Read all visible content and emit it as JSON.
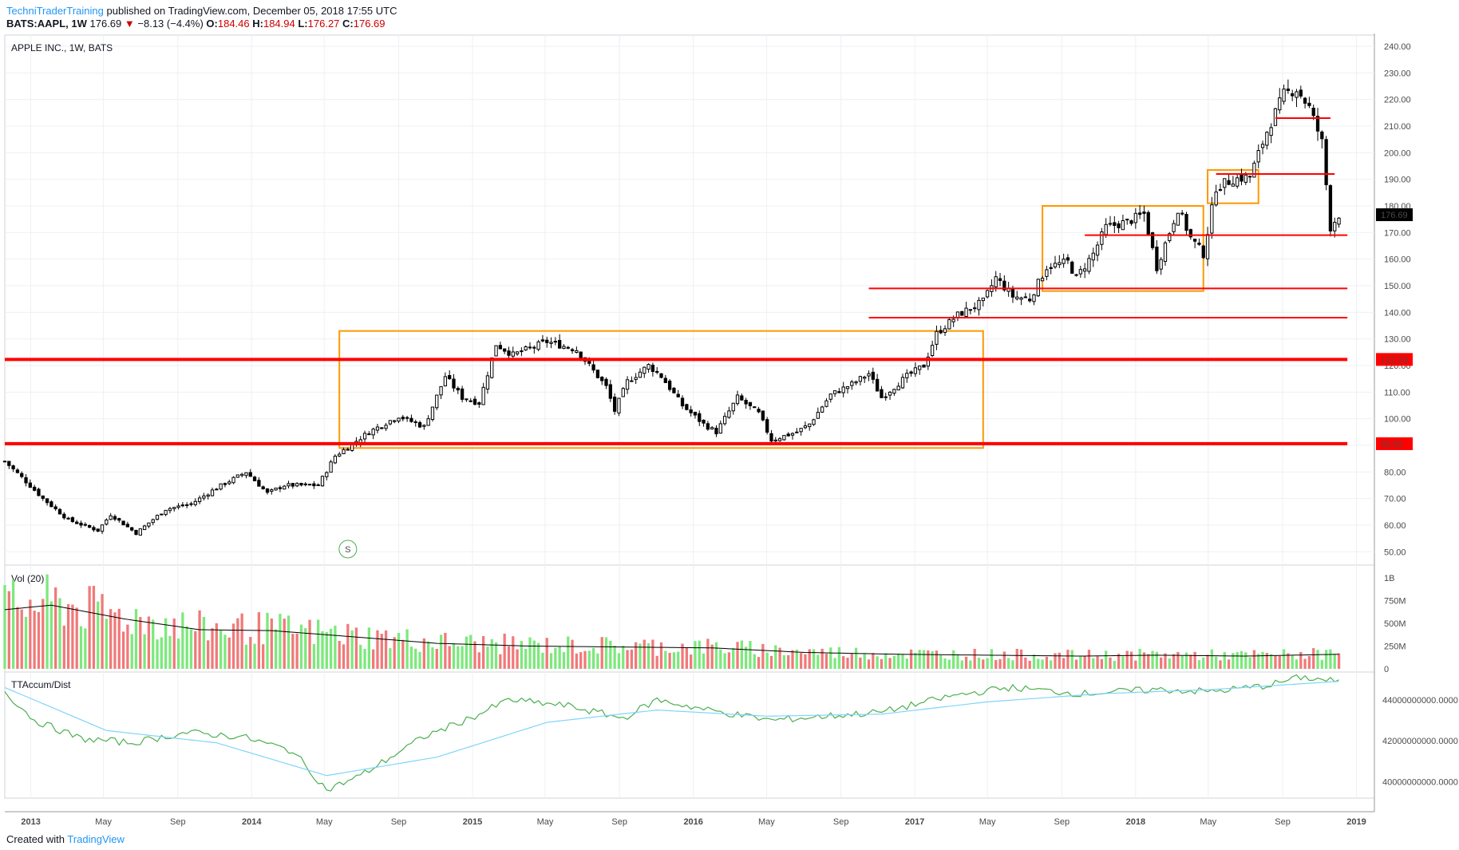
{
  "header": {
    "author": "TechniTraderTraining",
    "published_text": "published on TradingView.com, December 05, 2018 17:55 UTC",
    "symbol_line": "BATS:AAPL, 1W",
    "last": "176.69",
    "change": "−8.13 (−4.4%)",
    "change_arrow": "▼",
    "open_label": "O:",
    "open": "184.46",
    "high_label": "H:",
    "high": "184.94",
    "low_label": "L:",
    "low": "176.27",
    "close_label": "C:",
    "close": "176.69"
  },
  "footer": {
    "created_with": "Created with",
    "brand": "TradingView"
  },
  "colors": {
    "up": "#ffffff",
    "down": "#000000",
    "outline": "#000000",
    "support": "#ff0000",
    "box": "#ff9800",
    "vol_up": "#7de87d",
    "vol_down": "#f07a7a",
    "accum": "#4caf50",
    "accum_ma": "#81d4fa",
    "price_label": "#000000",
    "level_label": "#ff0000",
    "grid": "#eef0f3"
  },
  "chart_data": [
    {
      "type": "candlestick",
      "title": "APPLE INC., 1W, BATS",
      "ylim": [
        45,
        243
      ],
      "y_ticks": [
        "50.00",
        "60.00",
        "70.00",
        "80.00",
        "90.00",
        "100.00",
        "110.00",
        "120.00",
        "130.00",
        "140.00",
        "150.00",
        "160.00",
        "170.00",
        "180.00",
        "190.00",
        "200.00",
        "210.00",
        "220.00",
        "230.00",
        "240.00"
      ],
      "x_ticks": [
        "2013",
        "May",
        "Sep",
        "2014",
        "May",
        "Sep",
        "2015",
        "May",
        "Sep",
        "2016",
        "May",
        "Sep",
        "2017",
        "May",
        "Sep",
        "2018",
        "May",
        "Sep",
        "2019"
      ],
      "last_price": "176.69",
      "marker": "S",
      "close_anchors": [
        [
          "2012-11-19",
          84
        ],
        [
          "2012-12-17",
          78
        ],
        [
          "2013-01-21",
          70
        ],
        [
          "2013-03-04",
          62
        ],
        [
          "2013-04-22",
          58
        ],
        [
          "2013-05-13",
          64
        ],
        [
          "2013-06-24",
          57
        ],
        [
          "2013-08-12",
          66
        ],
        [
          "2013-09-23",
          68
        ],
        [
          "2013-11-04",
          74
        ],
        [
          "2013-12-23",
          80
        ],
        [
          "2014-01-27",
          72
        ],
        [
          "2014-02-24",
          75
        ],
        [
          "2014-04-21",
          75
        ],
        [
          "2014-05-19",
          86
        ],
        [
          "2014-07-14",
          95
        ],
        [
          "2014-09-01",
          101
        ],
        [
          "2014-10-13",
          97
        ],
        [
          "2014-11-17",
          116
        ],
        [
          "2014-12-15",
          108
        ],
        [
          "2015-01-12",
          106
        ],
        [
          "2015-02-09",
          128
        ],
        [
          "2015-03-09",
          124
        ],
        [
          "2015-05-04",
          129
        ],
        [
          "2015-06-22",
          126
        ],
        [
          "2015-08-10",
          112
        ],
        [
          "2015-08-24",
          103
        ],
        [
          "2015-09-14",
          114
        ],
        [
          "2015-10-19",
          120
        ],
        [
          "2015-11-09",
          116
        ],
        [
          "2015-12-14",
          105
        ],
        [
          "2016-01-18",
          98
        ],
        [
          "2016-02-08",
          95
        ],
        [
          "2016-03-14",
          108
        ],
        [
          "2016-04-18",
          102
        ],
        [
          "2016-05-09",
          92
        ],
        [
          "2016-06-20",
          95
        ],
        [
          "2016-07-11",
          98
        ],
        [
          "2016-08-15",
          109
        ],
        [
          "2016-09-19",
          113
        ],
        [
          "2016-10-17",
          117
        ],
        [
          "2016-11-07",
          108
        ],
        [
          "2016-12-19",
          116
        ],
        [
          "2017-01-16",
          120
        ],
        [
          "2017-02-06",
          132
        ],
        [
          "2017-03-13",
          139
        ],
        [
          "2017-04-24",
          144
        ],
        [
          "2017-05-15",
          153
        ],
        [
          "2017-06-12",
          146
        ],
        [
          "2017-07-10",
          145
        ],
        [
          "2017-08-07",
          157
        ],
        [
          "2017-09-11",
          159
        ],
        [
          "2017-09-25",
          153
        ],
        [
          "2017-10-23",
          162
        ],
        [
          "2017-11-13",
          172
        ],
        [
          "2017-12-18",
          174
        ],
        [
          "2018-01-15",
          177
        ],
        [
          "2018-02-05",
          157
        ],
        [
          "2018-03-12",
          179
        ],
        [
          "2018-04-02",
          168
        ],
        [
          "2018-04-23",
          162
        ],
        [
          "2018-05-14",
          187
        ],
        [
          "2018-06-11",
          190
        ],
        [
          "2018-07-09",
          191
        ],
        [
          "2018-08-06",
          208
        ],
        [
          "2018-09-03",
          222
        ],
        [
          "2018-09-24",
          224
        ],
        [
          "2018-10-15",
          217
        ],
        [
          "2018-11-05",
          204
        ],
        [
          "2018-11-19",
          172
        ],
        [
          "2018-12-03",
          176.69
        ]
      ],
      "support_levels": [
        {
          "label": "122.29",
          "value": 122.29,
          "from": "2012-11-19",
          "to": "2018-12-17",
          "thick": true
        },
        {
          "label": "90.62",
          "value": 90.62,
          "from": "2012-11-19",
          "to": "2018-12-17",
          "thick": true
        },
        {
          "value": 138,
          "from": "2016-10-17",
          "to": "2018-12-17"
        },
        {
          "value": 149,
          "from": "2016-10-17",
          "to": "2018-12-17"
        },
        {
          "value": 169,
          "from": "2017-10-09",
          "to": "2018-12-17"
        },
        {
          "value": 192,
          "from": "2018-05-14",
          "to": "2018-11-26"
        },
        {
          "value": 213,
          "from": "2018-08-20",
          "to": "2018-11-19"
        }
      ],
      "boxes": [
        {
          "from": "2014-05-26",
          "to": "2017-04-24",
          "low": 89,
          "high": 133
        },
        {
          "from": "2017-07-31",
          "to": "2018-04-23",
          "low": 148,
          "high": 180
        },
        {
          "from": "2018-04-30",
          "to": "2018-07-23",
          "low": 181,
          "high": 193.5
        }
      ]
    },
    {
      "type": "bar",
      "title": "Vol (20)",
      "ylim": [
        0,
        1000000000
      ],
      "y_ticks": [
        "1B",
        "750M",
        "500M",
        "250M",
        "0"
      ],
      "volume_anchors": [
        [
          "2012-11-19",
          650000000
        ],
        [
          "2013-02-04",
          700000000
        ],
        [
          "2013-06-03",
          550000000
        ],
        [
          "2013-10-07",
          430000000
        ],
        [
          "2014-02-03",
          420000000
        ],
        [
          "2014-06-02",
          360000000
        ],
        [
          "2014-11-03",
          280000000
        ],
        [
          "2015-04-06",
          250000000
        ],
        [
          "2015-09-07",
          240000000
        ],
        [
          "2016-02-01",
          230000000
        ],
        [
          "2016-07-04",
          180000000
        ],
        [
          "2016-12-05",
          160000000
        ],
        [
          "2017-05-01",
          150000000
        ],
        [
          "2017-10-02",
          140000000
        ],
        [
          "2018-02-05",
          150000000
        ],
        [
          "2018-07-02",
          140000000
        ],
        [
          "2018-12-03",
          160000000
        ]
      ],
      "ma_label": "20"
    },
    {
      "type": "line",
      "title": "TTAccum/Dist",
      "ylim": [
        39200000000,
        45200000000
      ],
      "y_ticks": [
        "44000000000.0000",
        "42000000000.0000",
        "40000000000.0000"
      ],
      "series": [
        {
          "kind": "accum",
          "anchors": [
            [
              "2012-11-19",
              44400000000
            ],
            [
              "2013-01-07",
              43000000000
            ],
            [
              "2013-03-25",
              42100000000
            ],
            [
              "2013-06-17",
              41900000000
            ],
            [
              "2013-09-16",
              42400000000
            ],
            [
              "2013-12-16",
              42200000000
            ],
            [
              "2014-03-10",
              41500000000
            ],
            [
              "2014-05-05",
              39600000000
            ],
            [
              "2014-06-30",
              40300000000
            ],
            [
              "2014-10-13",
              42200000000
            ],
            [
              "2015-01-05",
              43200000000
            ],
            [
              "2015-03-02",
              44000000000
            ],
            [
              "2015-06-08",
              43700000000
            ],
            [
              "2015-09-07",
              43100000000
            ],
            [
              "2015-11-02",
              44000000000
            ],
            [
              "2016-01-25",
              43500000000
            ],
            [
              "2016-05-09",
              43000000000
            ],
            [
              "2016-08-08",
              43200000000
            ],
            [
              "2016-11-07",
              43400000000
            ],
            [
              "2017-03-06",
              44200000000
            ],
            [
              "2017-06-05",
              44600000000
            ],
            [
              "2017-10-02",
              44300000000
            ],
            [
              "2018-02-05",
              44500000000
            ],
            [
              "2018-05-07",
              44400000000
            ],
            [
              "2018-08-06",
              44700000000
            ],
            [
              "2018-10-01",
              45100000000
            ],
            [
              "2018-12-03",
              44900000000
            ]
          ]
        },
        {
          "kind": "ma",
          "anchors": [
            [
              "2012-11-19",
              44600000000
            ],
            [
              "2013-05-06",
              42500000000
            ],
            [
              "2013-11-04",
              41900000000
            ],
            [
              "2014-05-05",
              40300000000
            ],
            [
              "2014-11-03",
              41200000000
            ],
            [
              "2015-05-04",
              42900000000
            ],
            [
              "2015-11-02",
              43500000000
            ],
            [
              "2016-05-02",
              43200000000
            ],
            [
              "2016-11-07",
              43300000000
            ],
            [
              "2017-05-01",
              43900000000
            ],
            [
              "2017-11-06",
              44300000000
            ],
            [
              "2018-05-07",
              44500000000
            ],
            [
              "2018-12-03",
              44900000000
            ]
          ]
        }
      ]
    }
  ]
}
